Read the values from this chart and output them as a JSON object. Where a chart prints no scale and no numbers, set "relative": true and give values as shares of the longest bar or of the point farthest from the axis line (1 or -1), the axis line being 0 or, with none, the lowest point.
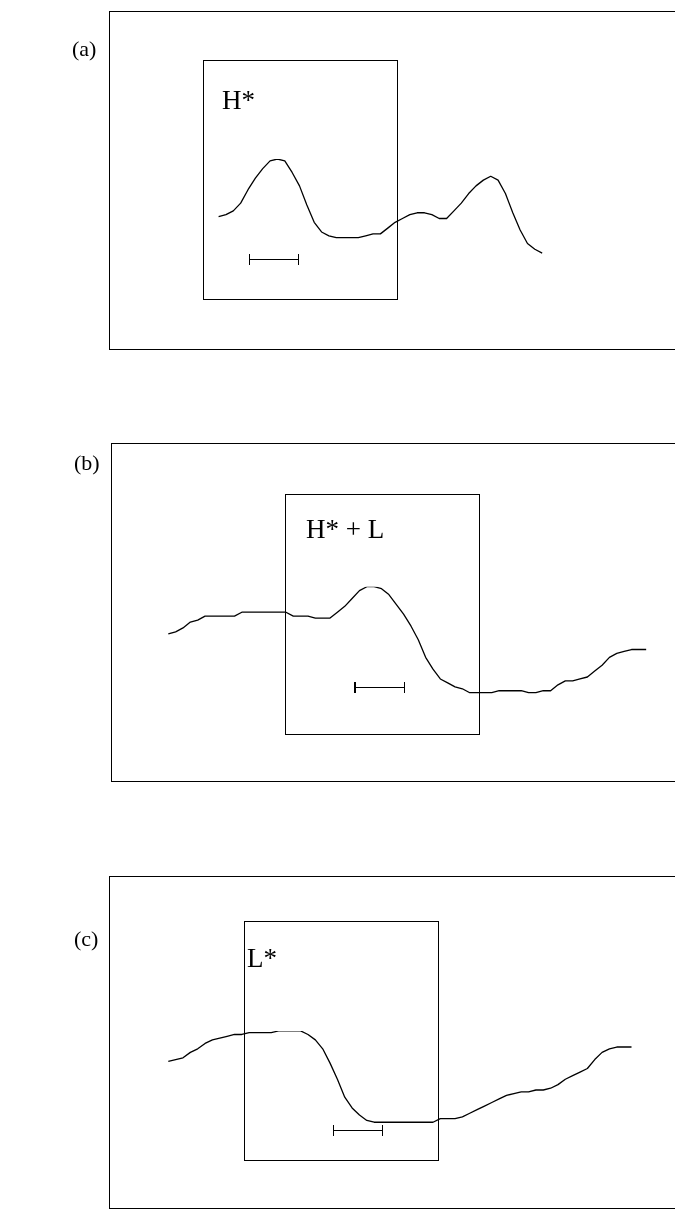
{
  "chart_data": [
    {
      "type": "line",
      "title": "(a)",
      "relative": true,
      "color": "#000000",
      "annotations": [
        "H*"
      ],
      "categories": [
        null,
        null,
        null,
        null,
        null,
        null,
        null,
        null,
        null,
        null,
        null,
        null,
        null,
        null,
        null,
        null,
        null,
        null,
        null,
        null,
        null,
        null,
        null,
        null,
        null,
        null,
        null,
        null,
        null,
        null,
        null,
        null,
        null,
        null,
        null,
        null,
        null,
        null,
        null,
        null,
        null,
        null,
        null,
        null,
        null
      ],
      "values": [
        0.7,
        0.71,
        0.73,
        0.77,
        0.84,
        0.9,
        0.95,
        0.99,
        1.0,
        0.99,
        0.93,
        0.86,
        0.76,
        0.67,
        0.62,
        0.6,
        0.59,
        0.59,
        0.59,
        0.59,
        0.6,
        0.61,
        0.61,
        0.64,
        0.67,
        0.69,
        0.71,
        0.72,
        0.72,
        0.71,
        0.69,
        0.69,
        0.73,
        0.77,
        0.82,
        0.86,
        0.89,
        0.91,
        0.89,
        0.82,
        0.72,
        0.63,
        0.56,
        0.53,
        0.51
      ]
    },
    {
      "type": "line",
      "title": "(b)",
      "relative": true,
      "color": "#000000",
      "annotations": [
        "H* + L"
      ],
      "categories": [
        null,
        null,
        null,
        null,
        null,
        null,
        null,
        null,
        null,
        null,
        null,
        null,
        null,
        null,
        null,
        null,
        null,
        null,
        null,
        null,
        null,
        null,
        null,
        null,
        null,
        null,
        null,
        null,
        null,
        null,
        null,
        null,
        null,
        null,
        null,
        null,
        null,
        null,
        null,
        null,
        null,
        null,
        null,
        null,
        null,
        null,
        null,
        null,
        null,
        null,
        null,
        null,
        null,
        null,
        null,
        null,
        null,
        null,
        null,
        null,
        null,
        null,
        null,
        null,
        null,
        null
      ],
      "values": [
        0.76,
        0.77,
        0.79,
        0.82,
        0.83,
        0.85,
        0.85,
        0.85,
        0.85,
        0.85,
        0.87,
        0.87,
        0.87,
        0.87,
        0.87,
        0.87,
        0.87,
        0.85,
        0.85,
        0.85,
        0.84,
        0.84,
        0.84,
        0.87,
        0.9,
        0.94,
        0.98,
        1.0,
        1.0,
        0.99,
        0.96,
        0.91,
        0.86,
        0.8,
        0.73,
        0.64,
        0.58,
        0.53,
        0.51,
        0.49,
        0.48,
        0.46,
        0.46,
        0.46,
        0.46,
        0.47,
        0.47,
        0.47,
        0.47,
        0.46,
        0.46,
        0.47,
        0.47,
        0.5,
        0.52,
        0.52,
        0.53,
        0.54,
        0.57,
        0.6,
        0.64,
        0.66,
        0.67,
        0.68,
        0.68,
        0.68
      ]
    },
    {
      "type": "line",
      "title": "(c)",
      "relative": true,
      "color": "#000000",
      "annotations": [
        "L*"
      ],
      "categories": [
        null,
        null,
        null,
        null,
        null,
        null,
        null,
        null,
        null,
        null,
        null,
        null,
        null,
        null,
        null,
        null,
        null,
        null,
        null,
        null,
        null,
        null,
        null,
        null,
        null,
        null,
        null,
        null,
        null,
        null,
        null,
        null,
        null,
        null,
        null,
        null,
        null,
        null,
        null,
        null,
        null,
        null,
        null,
        null,
        null,
        null,
        null,
        null,
        null,
        null,
        null,
        null,
        null,
        null,
        null,
        null,
        null,
        null,
        null,
        null,
        null,
        null,
        null,
        null
      ],
      "values": [
        0.83,
        0.84,
        0.85,
        0.88,
        0.9,
        0.93,
        0.95,
        0.96,
        0.97,
        0.98,
        0.98,
        0.99,
        0.99,
        0.99,
        0.99,
        1.0,
        1.0,
        1.0,
        1.0,
        0.98,
        0.95,
        0.9,
        0.82,
        0.73,
        0.63,
        0.57,
        0.53,
        0.5,
        0.49,
        0.49,
        0.49,
        0.49,
        0.49,
        0.49,
        0.49,
        0.49,
        0.49,
        0.51,
        0.51,
        0.51,
        0.52,
        0.54,
        0.56,
        0.58,
        0.6,
        0.62,
        0.64,
        0.65,
        0.66,
        0.66,
        0.67,
        0.67,
        0.68,
        0.7,
        0.73,
        0.75,
        0.77,
        0.79,
        0.84,
        0.88,
        0.9,
        0.91,
        0.91,
        0.91
      ]
    }
  ]
}
